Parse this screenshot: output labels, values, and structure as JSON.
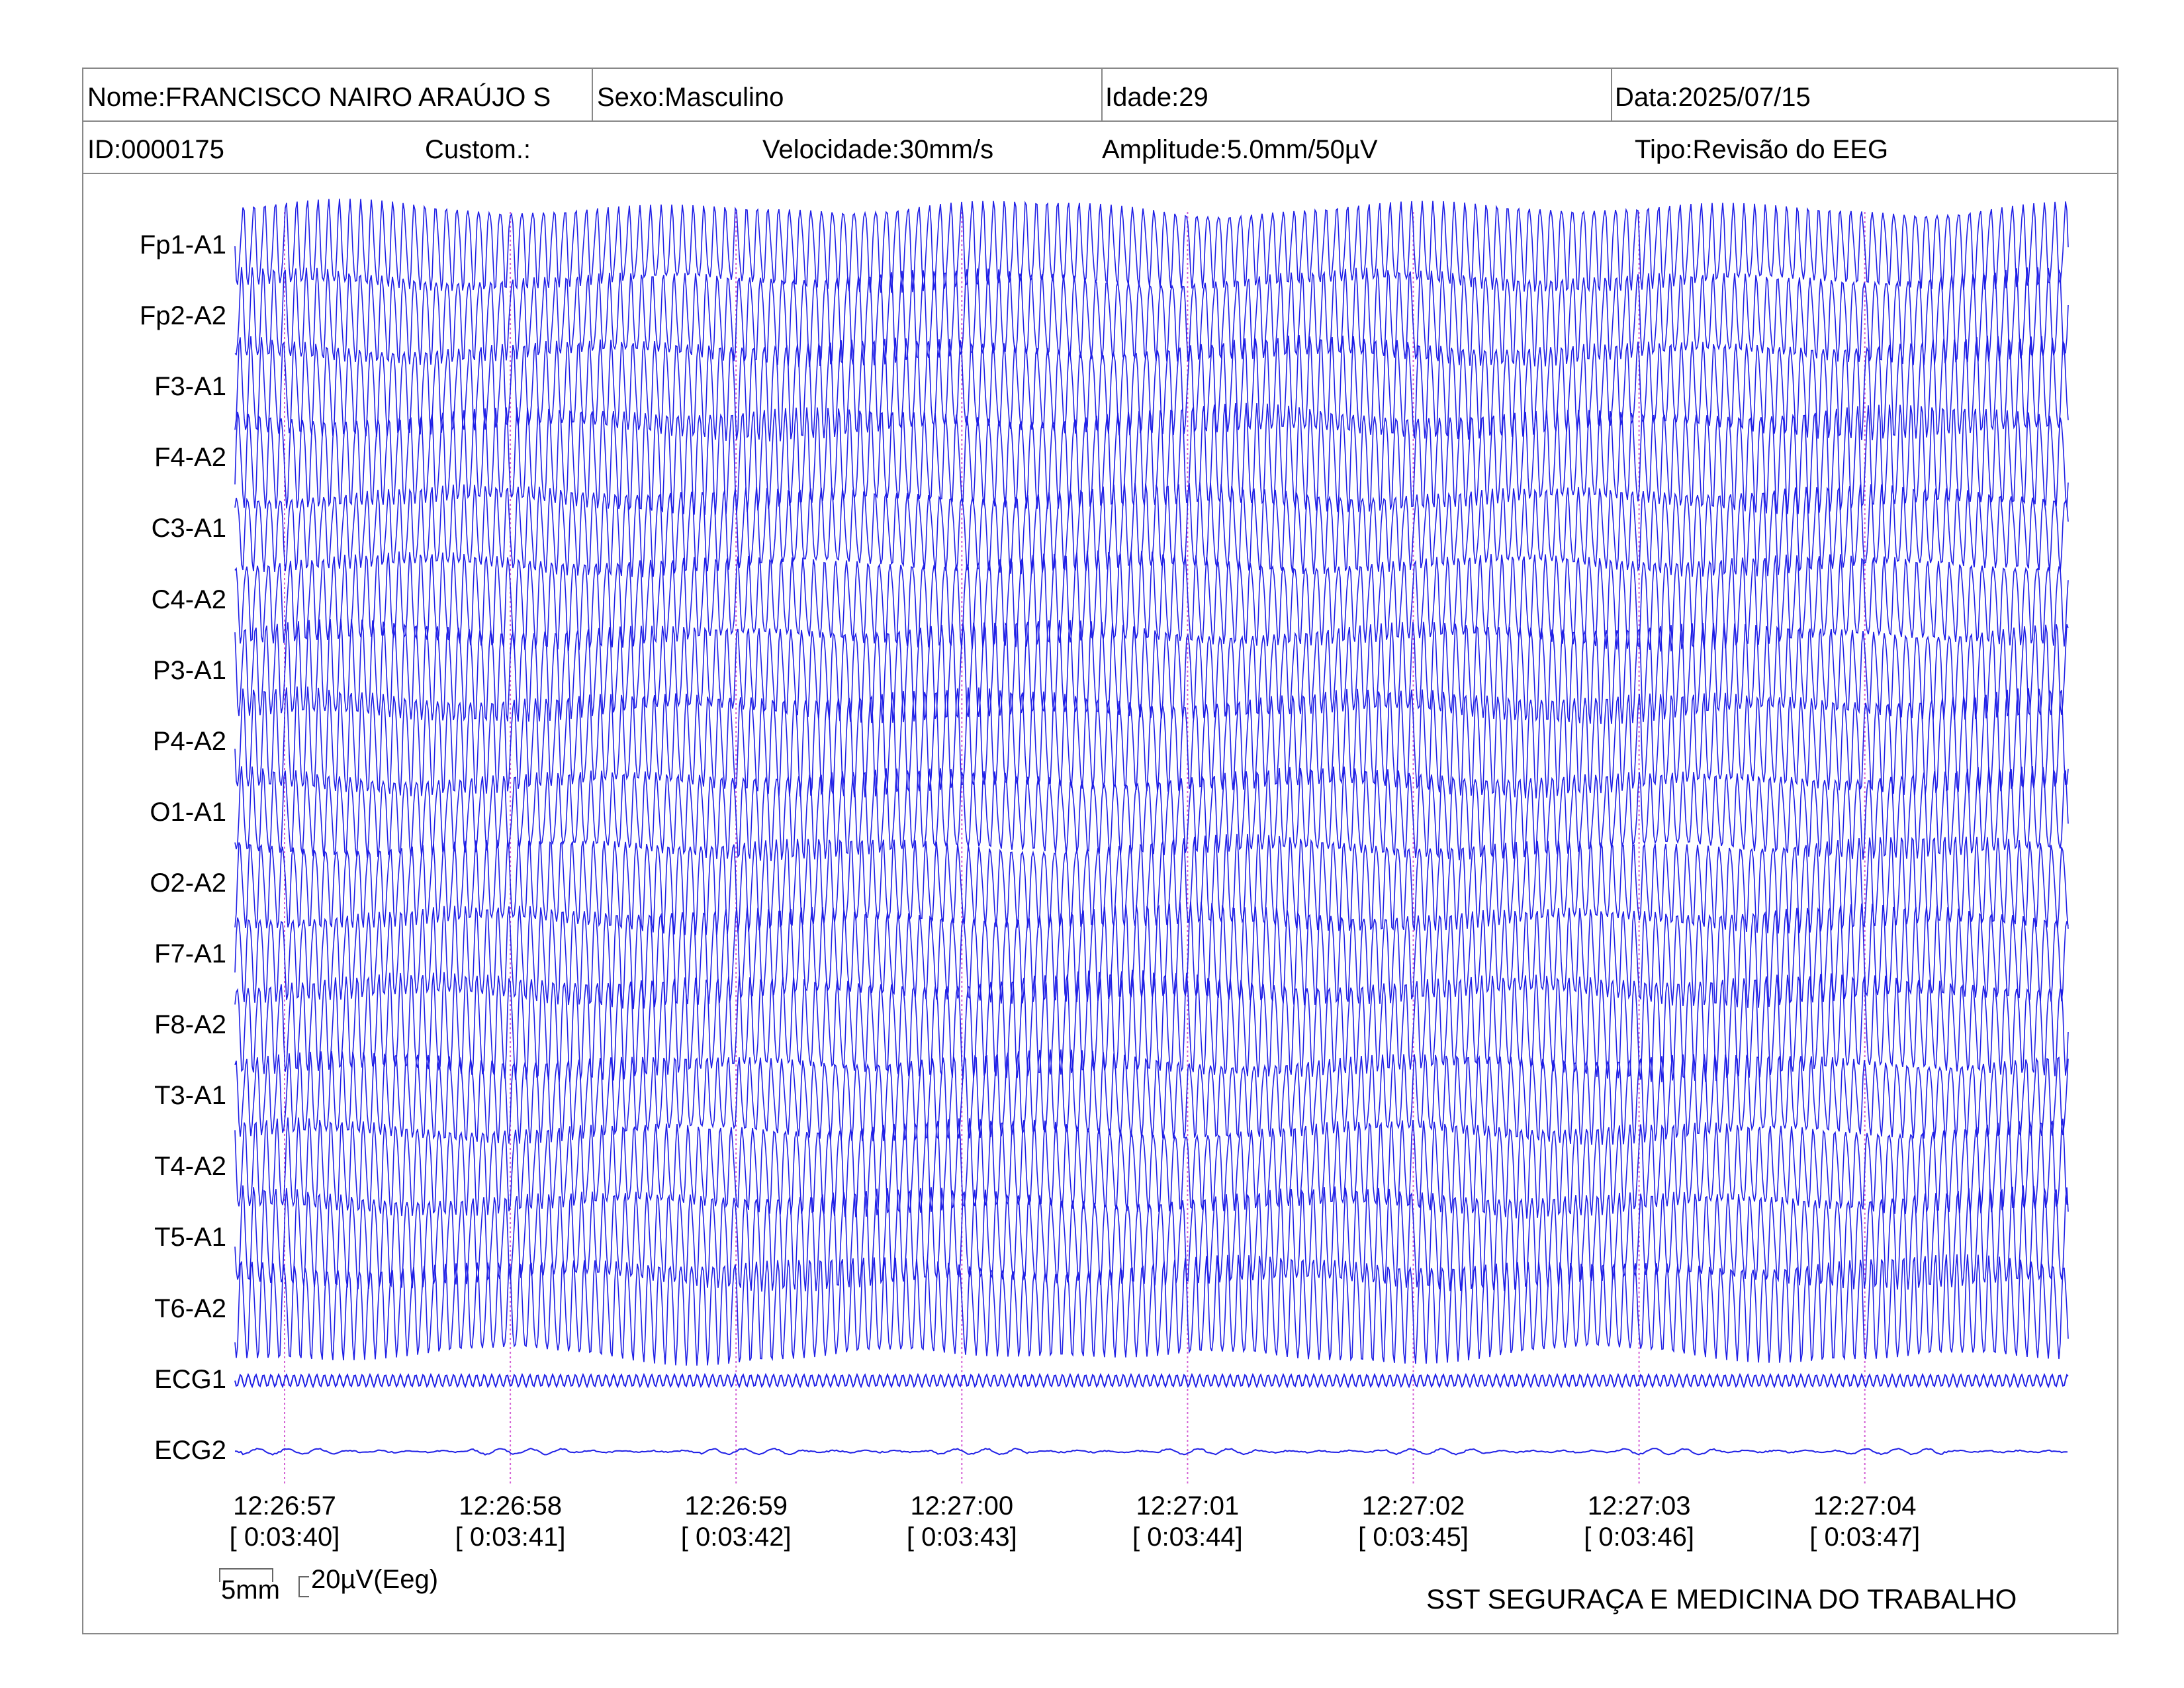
{
  "header": {
    "name": "Nome:FRANCISCO NAIRO ARAÚJO S",
    "sex": "Sexo:Masculino",
    "age": "Idade:29",
    "date": "Data:2025/07/15",
    "id": "ID:0000175",
    "custom": "Custom.:",
    "speed": "Velocidade:30mm/s",
    "amplitude": "Amplitude:5.0mm/50µV",
    "type": "Tipo:Revisão do EEG"
  },
  "channels": [
    "Fp1-A1",
    "Fp2-A2",
    "F3-A1",
    "F4-A2",
    "C3-A1",
    "C4-A2",
    "P3-A1",
    "P4-A2",
    "O1-A1",
    "O2-A2",
    "F7-A1",
    "F8-A2",
    "T3-A1",
    "T4-A2",
    "T5-A1",
    "T6-A2",
    "ECG1",
    "ECG2"
  ],
  "time_marks": [
    {
      "clock": "12:26:57",
      "elapsed": "[ 0:03:40]"
    },
    {
      "clock": "12:26:58",
      "elapsed": "[ 0:03:41]"
    },
    {
      "clock": "12:26:59",
      "elapsed": "[ 0:03:42]"
    },
    {
      "clock": "12:27:00",
      "elapsed": "[ 0:03:43]"
    },
    {
      "clock": "12:27:01",
      "elapsed": "[ 0:03:44]"
    },
    {
      "clock": "12:27:02",
      "elapsed": "[ 0:03:45]"
    },
    {
      "clock": "12:27:03",
      "elapsed": "[ 0:03:46]"
    },
    {
      "clock": "12:27:04",
      "elapsed": "[ 0:03:47]"
    }
  ],
  "calibration": {
    "time_scale": "5mm",
    "amp_scale": "20µV(Eeg)"
  },
  "footer": {
    "org": "SST SEGURAÇA E MEDICINA DO TRABALHO"
  },
  "colors": {
    "trace": "#1f1fe6",
    "time_marker": "#d45fd4",
    "border": "#888888"
  }
}
